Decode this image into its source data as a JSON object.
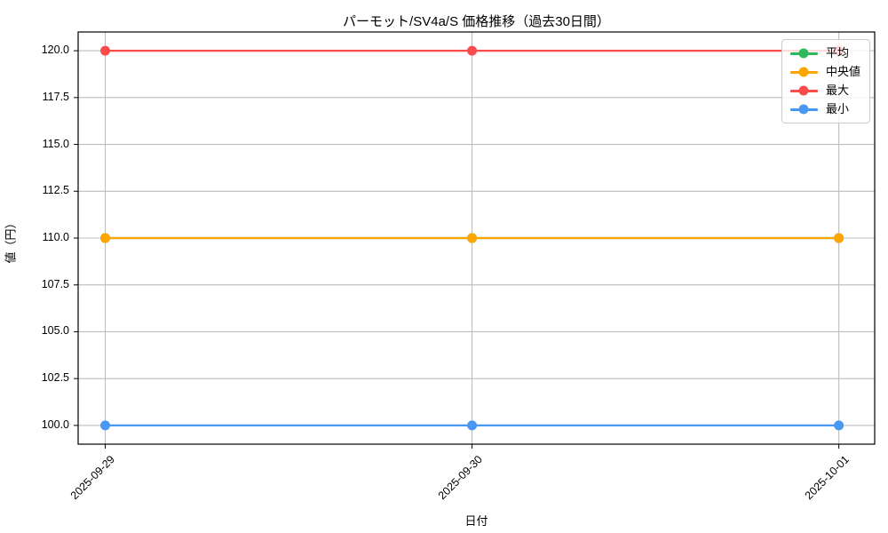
{
  "title": "パーモット/SV4a/S 価格推移（過去30日間）",
  "chart_data": {
    "type": "line",
    "title": "パーモット/SV4a/S 価格推移（過去30日間）",
    "xlabel": "日付",
    "ylabel": "値（円）",
    "x": [
      "2025-09-29",
      "2025-09-30",
      "2025-10-01"
    ],
    "series": [
      {
        "name": "平均",
        "values": [
          110,
          110,
          110
        ],
        "color": "#2eb85c"
      },
      {
        "name": "中央値",
        "values": [
          110,
          110,
          110
        ],
        "color": "#ffa502"
      },
      {
        "name": "最大",
        "values": [
          120,
          120,
          120
        ],
        "color": "#fa4b4b"
      },
      {
        "name": "最小",
        "values": [
          100,
          100,
          100
        ],
        "color": "#4897f2"
      }
    ],
    "yticks": [
      100.0,
      102.5,
      105.0,
      107.5,
      110.0,
      112.5,
      115.0,
      117.5,
      120.0
    ],
    "ylim": [
      99,
      121
    ],
    "grid": true,
    "grid_color": "#bdbdbd",
    "legend_position": "upper right",
    "xtick_rotation": 45
  }
}
